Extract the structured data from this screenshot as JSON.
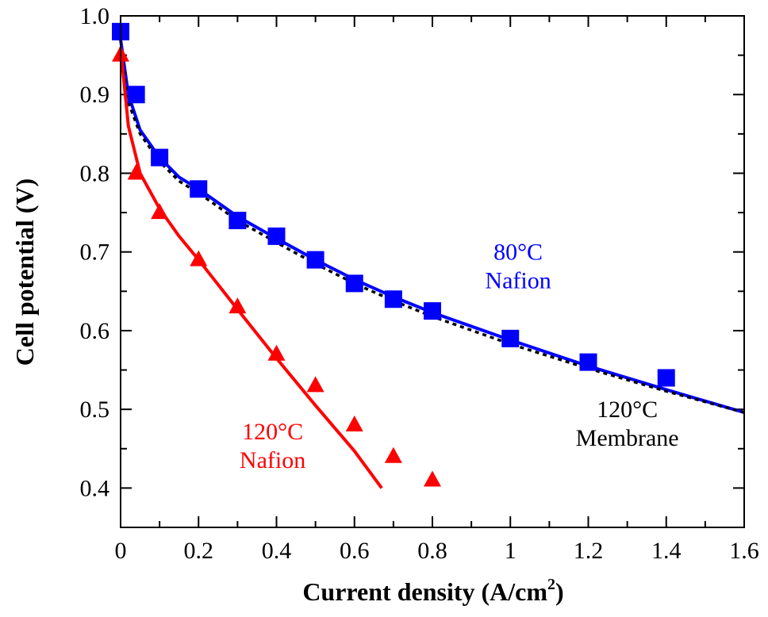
{
  "chart_data": {
    "type": "scatter",
    "xlabel": "Current density (A/cm",
    "xlabel_sup": "2",
    "xlabel_close": ")",
    "ylabel": "Cell potential (V)",
    "xlim": [
      0,
      1.6
    ],
    "ylim": [
      0.35,
      1.0
    ],
    "x_ticks": [
      0,
      0.2,
      0.4,
      0.6,
      0.8,
      1,
      1.2,
      1.4,
      1.6
    ],
    "x_tick_labels": [
      "0",
      "0.2",
      "0.4",
      "0.6",
      "0.8",
      "1",
      "1.2",
      "1.4",
      "1.6"
    ],
    "y_ticks": [
      0.4,
      0.5,
      0.6,
      0.7,
      0.8,
      0.9,
      1.0
    ],
    "y_tick_labels": [
      "0.4",
      "0.5",
      "0.6",
      "0.7",
      "0.8",
      "0.9",
      "1.0"
    ],
    "grid": false,
    "series": [
      {
        "color": "#0000ff",
        "marker": "square",
        "x": [
          0,
          0.04,
          0.1,
          0.2,
          0.3,
          0.4,
          0.5,
          0.6,
          0.7,
          0.8,
          1.0,
          1.2,
          1.4
        ],
        "y": [
          0.98,
          0.9,
          0.82,
          0.78,
          0.74,
          0.72,
          0.69,
          0.66,
          0.64,
          0.625,
          0.59,
          0.56,
          0.54
        ]
      },
      {
        "color": "#0000ff",
        "line": "solid",
        "x": [
          0,
          0.02,
          0.05,
          0.1,
          0.15,
          0.2,
          0.3,
          0.4,
          0.5,
          0.6,
          0.7,
          0.8,
          1.0,
          1.2,
          1.4,
          1.6
        ],
        "y": [
          0.97,
          0.9,
          0.855,
          0.82,
          0.795,
          0.78,
          0.745,
          0.717,
          0.69,
          0.665,
          0.643,
          0.623,
          0.588,
          0.555,
          0.525,
          0.496
        ]
      },
      {
        "color": "#000000",
        "line": "dotted",
        "x": [
          0,
          0.02,
          0.05,
          0.1,
          0.15,
          0.2,
          0.3,
          0.4,
          0.5,
          0.6,
          0.7,
          0.8,
          1.0,
          1.2,
          1.4,
          1.6
        ],
        "y": [
          0.96,
          0.89,
          0.85,
          0.815,
          0.79,
          0.775,
          0.74,
          0.712,
          0.685,
          0.66,
          0.638,
          0.618,
          0.583,
          0.552,
          0.523,
          0.496
        ]
      },
      {
        "color": "#ff0000",
        "marker": "triangle",
        "x": [
          0,
          0.04,
          0.1,
          0.2,
          0.3,
          0.4,
          0.5,
          0.6,
          0.7,
          0.8
        ],
        "y": [
          0.95,
          0.8,
          0.75,
          0.69,
          0.63,
          0.57,
          0.53,
          0.48,
          0.44,
          0.41
        ]
      },
      {
        "color": "#ff0000",
        "line": "solid",
        "x": [
          0,
          0.02,
          0.05,
          0.1,
          0.15,
          0.2,
          0.3,
          0.4,
          0.5,
          0.6,
          0.67
        ],
        "y": [
          0.96,
          0.86,
          0.8,
          0.755,
          0.72,
          0.69,
          0.627,
          0.565,
          0.505,
          0.447,
          0.4
        ]
      }
    ],
    "annotations": [
      {
        "lines": [
          "80°C",
          "Nafion"
        ],
        "color": "#0000ff",
        "x": 1.02,
        "y": 0.69
      },
      {
        "lines": [
          "120°C",
          "Membrane"
        ],
        "color": "#000000",
        "x": 1.3,
        "y": 0.49
      },
      {
        "lines": [
          "120°C",
          "Nafion"
        ],
        "color": "#ff0000",
        "x": 0.39,
        "y": 0.462
      }
    ]
  }
}
